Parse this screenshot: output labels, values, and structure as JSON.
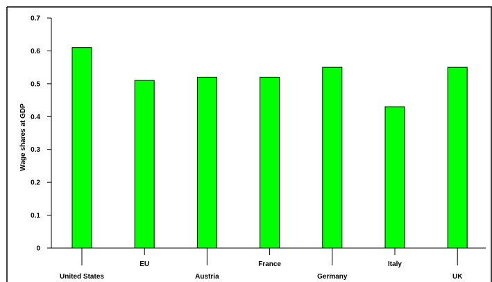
{
  "chart_data": {
    "type": "bar",
    "title": "",
    "xlabel": "",
    "ylabel": "Wage shares at GDP",
    "categories": [
      "United States",
      "EU",
      "Austria",
      "France",
      "Germany",
      "Italy",
      "UK"
    ],
    "values": [
      0.61,
      0.51,
      0.52,
      0.52,
      0.55,
      0.43,
      0.55
    ],
    "ylim": [
      0,
      0.7
    ],
    "yticks": [
      "0",
      "0.1",
      "0.2",
      "0.3",
      "0.4",
      "0.5",
      "0.6",
      "0.7"
    ],
    "grid": false,
    "legend": "none",
    "bar_color": "#00ff00",
    "bar_edge_color": "#000000",
    "frame_color": "#000000"
  }
}
